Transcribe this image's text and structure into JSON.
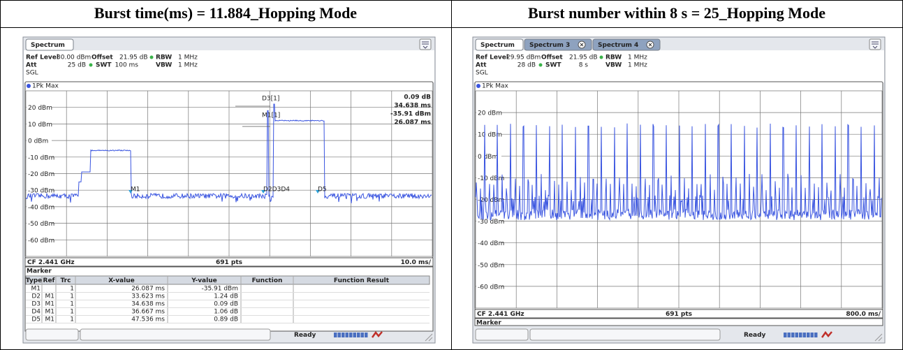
{
  "headers": [
    "Burst time(ms) = 11.884_Hopping Mode",
    "Burst number within 8 s = 25_Hopping Mode"
  ],
  "panels": [
    {
      "tabs": [
        "Spectrum"
      ],
      "settings": [
        [
          "Ref Level",
          "30.00 dBm",
          "Offset",
          "21.95 dB",
          "RBW",
          "1 MHz"
        ],
        [
          "Att",
          "25 dB",
          "SWT",
          "100 ms",
          "VBW",
          "1 MHz"
        ]
      ],
      "mode": "SGL",
      "trace": "1Pk Max",
      "y_labels": [
        "20 dBm",
        "10 dBm",
        "0 dBm",
        "-10 dBm",
        "-20 dBm",
        "-30 dBm",
        "-40 dBm",
        "-50 dBm",
        "-60 dBm"
      ],
      "marker_readout": [
        [
          "D3[1]",
          "0.09 dB",
          "34.638 ms"
        ],
        [
          "M1[1]",
          "-35.91 dBm",
          "26.087 ms"
        ]
      ],
      "marker_tags": [
        "M1",
        "D2D3D4",
        "D5"
      ],
      "footer": [
        "CF 2.441 GHz",
        "691 pts",
        "10.0 ms/"
      ],
      "marker_title": "Marker",
      "marker_table": {
        "columns": [
          "Type",
          "Ref",
          "Trc",
          "X-value",
          "Y-value",
          "Function",
          "Function Result"
        ],
        "rows": [
          {
            "type": "M1",
            "trc": "1",
            "x": "26.087 ms",
            "y": "-35.91 dBm"
          },
          {
            "type": "D2",
            "ref": "M1",
            "trc": "1",
            "x": "33.623 ms",
            "y": "1.24 dB"
          },
          {
            "type": "D3",
            "ref": "M1",
            "trc": "1",
            "x": "34.638 ms",
            "y": "0.09 dB"
          },
          {
            "type": "D4",
            "ref": "M1",
            "trc": "1",
            "x": "36.667 ms",
            "y": "1.06 dB"
          },
          {
            "type": "D5",
            "ref": "M1",
            "trc": "1",
            "x": "47.536 ms",
            "y": "0.89 dB"
          }
        ]
      },
      "status": "Ready"
    },
    {
      "tabs": [
        "Spectrum",
        "Spectrum 3",
        "Spectrum 4"
      ],
      "settings": [
        [
          "Ref Level",
          "29.95 dBm",
          "Offset",
          "21.95 dB",
          "RBW",
          "1 MHz"
        ],
        [
          "Att",
          "28 dB",
          "SWT",
          "8 s",
          "VBW",
          "1 MHz"
        ]
      ],
      "mode": "SGL",
      "trace": "1Pk Max",
      "y_labels": [
        "20 dBm",
        "10 dBm",
        "0 dBm",
        "-10 dBm",
        "-20 dBm",
        "-30 dBm",
        "-40 dBm",
        "-50 dBm",
        "-60 dBm"
      ],
      "footer": [
        "CF 2.441 GHz",
        "691 pts",
        "800.0 ms/"
      ],
      "marker_title": "Marker",
      "status": "Ready"
    }
  ]
}
